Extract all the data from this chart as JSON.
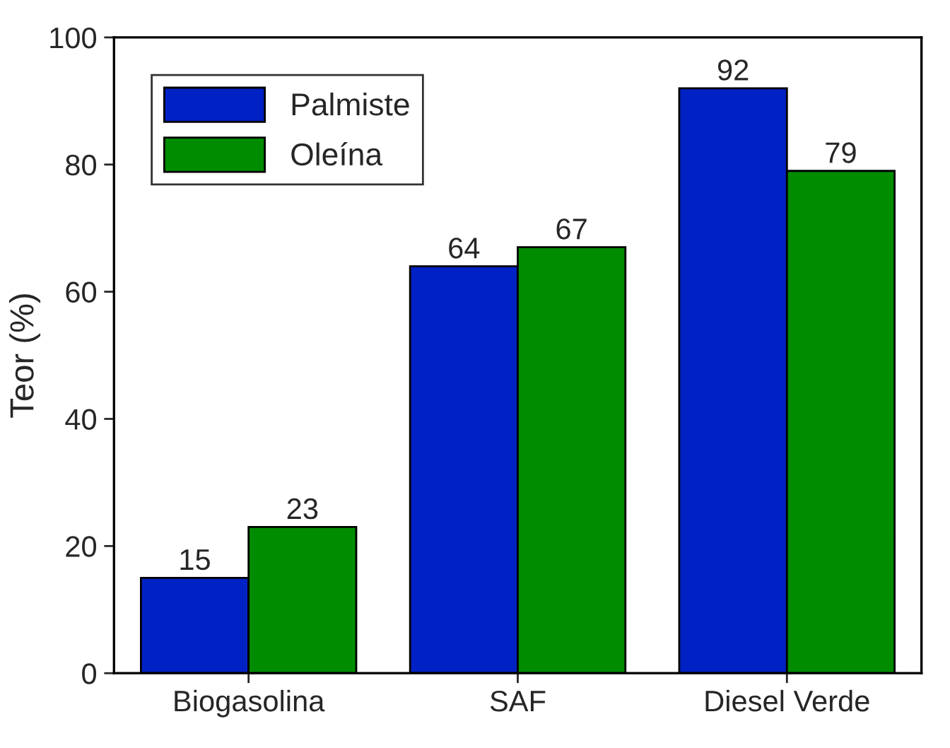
{
  "chart_data": {
    "type": "bar",
    "ylabel": "Teor (%)",
    "categories": [
      "Biogasolina",
      "SAF",
      "Diesel Verde"
    ],
    "series": [
      {
        "name": "Palmiste",
        "color": "#0022c4",
        "values": [
          15,
          64,
          92
        ]
      },
      {
        "name": "Oleína",
        "color": "#008c00",
        "values": [
          23,
          67,
          79
        ]
      }
    ],
    "ylim": [
      0,
      100
    ],
    "yticks": [
      0,
      20,
      40,
      60,
      80,
      100
    ],
    "data_labels": true,
    "legend": "top left",
    "grid": false
  }
}
